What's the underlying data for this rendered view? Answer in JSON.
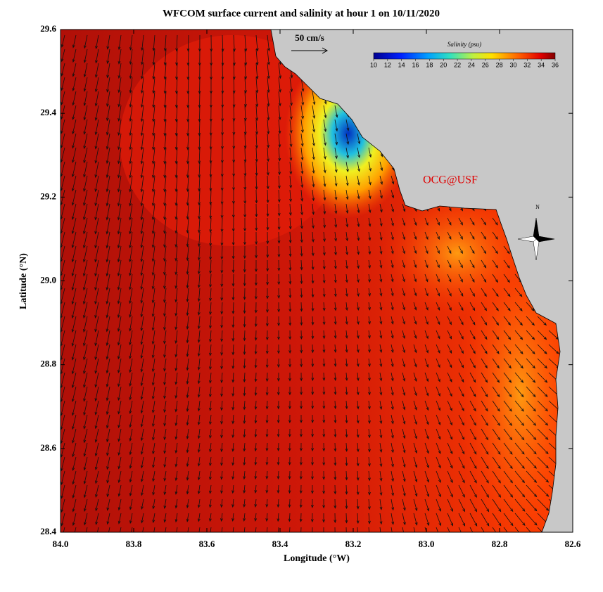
{
  "chart_data": {
    "type": "map",
    "title": "WFCOM surface current and salinity at hour 1 on 10/11/2020",
    "xlabel": "Longitude (°W)",
    "ylabel": "Latitude (°N)",
    "xlim": [
      84.0,
      82.6
    ],
    "ylim": [
      28.4,
      29.6
    ],
    "xticks": [
      {
        "value": 84,
        "label": "84.0"
      },
      {
        "value": 83.8,
        "label": "83.8"
      },
      {
        "value": 83.6,
        "label": "83.6"
      },
      {
        "value": 83.4,
        "label": "83.4"
      },
      {
        "value": 83.2,
        "label": "83.2"
      },
      {
        "value": 83,
        "label": "83.0"
      },
      {
        "value": 82.8,
        "label": "82.8"
      },
      {
        "value": 82.6,
        "label": "82.6"
      }
    ],
    "yticks": [
      {
        "value": 28.4,
        "label": "28.4"
      },
      {
        "value": 28.6,
        "label": "28.6"
      },
      {
        "value": 28.8,
        "label": "28.8"
      },
      {
        "value": 29,
        "label": "29.0"
      },
      {
        "value": 29.2,
        "label": "29.2"
      },
      {
        "value": 29.4,
        "label": "29.4"
      },
      {
        "value": 29.6,
        "label": "29.6"
      }
    ],
    "colorbar": {
      "title": "Salinity (psu)",
      "lim": [
        10,
        36
      ],
      "ticks": [
        10,
        12,
        14,
        16,
        18,
        20,
        22,
        24,
        26,
        28,
        30,
        32,
        34,
        36
      ]
    },
    "scale_label": "50 cm/s",
    "credit": "OCG@USF",
    "compass_label": "N"
  }
}
